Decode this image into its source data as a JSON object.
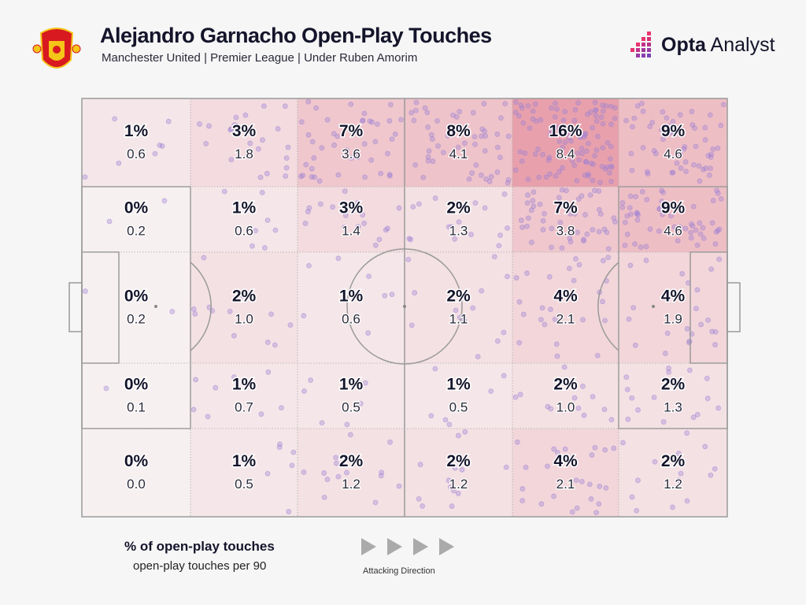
{
  "header": {
    "title": "Alejandro Garnacho Open-Play Touches",
    "subtitle": "Manchester United | Premier League | Under Ruben Amorim",
    "club_crest": "MANCHESTER UNITED",
    "brand_bold": "Opta",
    "brand_light": "Analyst"
  },
  "colors": {
    "heat_low": "#f7f0f1",
    "heat_high": "#e8a1ac",
    "dots": "#9b7fd4",
    "lines": "#9a9a9a",
    "text": "#14142b"
  },
  "chart_data": {
    "type": "heatmap",
    "title": "Alejandro Garnacho Open-Play Touches",
    "grid": "6 columns x 5 rows (pitch zones, attacking left to right)",
    "rows": [
      {
        "pct": [
          "1%",
          "3%",
          "7%",
          "8%",
          "16%",
          "9%"
        ],
        "per90": [
          "0.6",
          "1.8",
          "3.6",
          "4.1",
          "8.4",
          "4.6"
        ]
      },
      {
        "pct": [
          "0%",
          "1%",
          "3%",
          "2%",
          "7%",
          "9%"
        ],
        "per90": [
          "0.2",
          "0.6",
          "1.4",
          "1.3",
          "3.8",
          "4.6"
        ]
      },
      {
        "pct": [
          "0%",
          "2%",
          "1%",
          "2%",
          "4%",
          "4%"
        ],
        "per90": [
          "0.2",
          "1.0",
          "0.6",
          "1.1",
          "2.1",
          "1.9"
        ]
      },
      {
        "pct": [
          "0%",
          "1%",
          "1%",
          "1%",
          "2%",
          "2%"
        ],
        "per90": [
          "0.1",
          "0.7",
          "0.5",
          "0.5",
          "1.0",
          "1.3"
        ]
      },
      {
        "pct": [
          "0%",
          "1%",
          "2%",
          "2%",
          "4%",
          "2%"
        ],
        "per90": [
          "0.0",
          "0.5",
          "1.2",
          "1.2",
          "2.1",
          "1.2"
        ]
      }
    ]
  },
  "legend": {
    "pct_label": "% of open-play touches",
    "per90_label": "open-play touches per 90",
    "direction_label": "Attacking Direction",
    "arrow_count": 4
  }
}
